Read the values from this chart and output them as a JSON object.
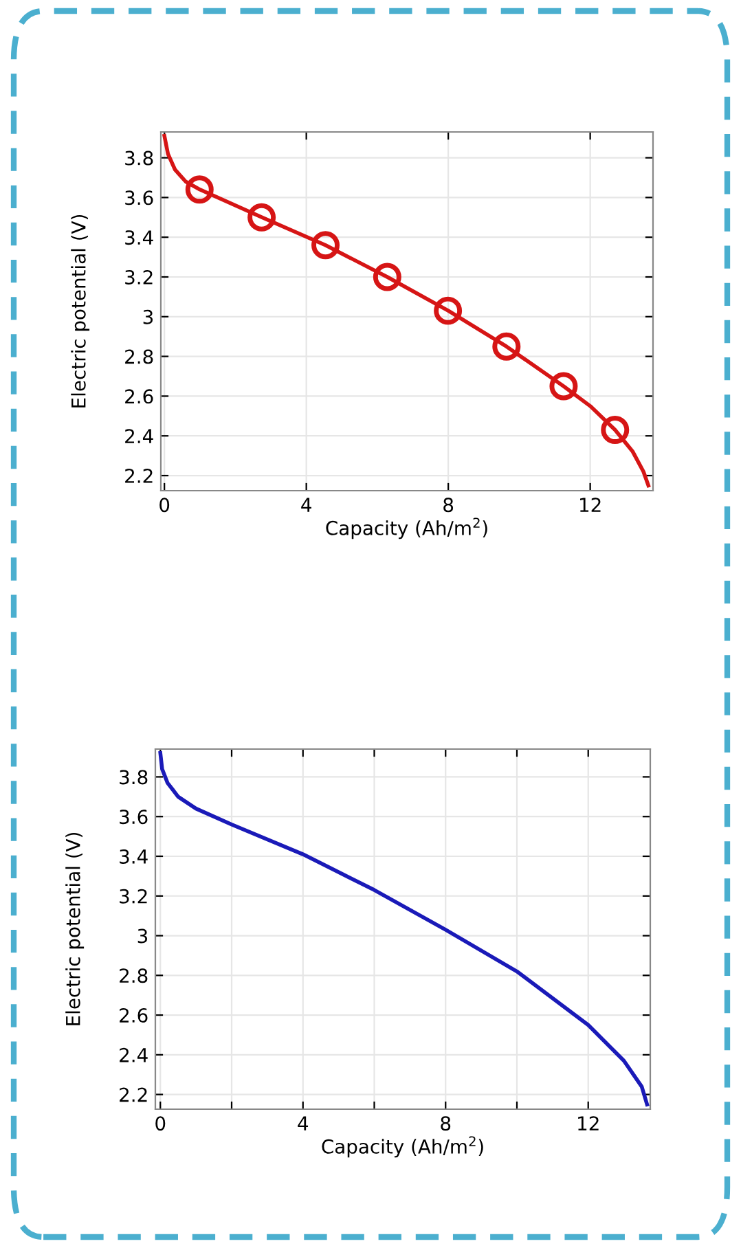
{
  "chart_data": [
    {
      "type": "line",
      "xlabel": "Capacity (Ah/m$^{2}$)",
      "ylabel": "Electric potential (V)",
      "xlim": [
        -0.1,
        13.77
      ],
      "ylim": [
        2.124,
        3.93
      ],
      "xticks": [
        0,
        4,
        8,
        12
      ],
      "yticks": [
        2.2,
        2.4,
        2.6,
        2.8,
        3,
        3.2,
        3.4,
        3.6,
        3.8
      ],
      "grid": true,
      "series": [
        {
          "color": "#d61515",
          "marker": "none",
          "x": [
            0,
            0.1,
            0.3,
            0.6,
            1.0,
            2.75,
            4.54,
            6.28,
            8,
            9.64,
            11.25,
            12.0,
            12.7,
            13.2,
            13.5,
            13.64
          ],
          "values": [
            3.91,
            3.82,
            3.74,
            3.68,
            3.64,
            3.5,
            3.36,
            3.2,
            3.03,
            2.85,
            2.65,
            2.55,
            2.43,
            2.32,
            2.22,
            2.15
          ]
        },
        {
          "type": "scatter",
          "color": "#d61515",
          "marker": "circle",
          "x": [
            0.99,
            2.74,
            4.54,
            6.28,
            7.99,
            9.64,
            11.25,
            12.7
          ],
          "values": [
            3.64,
            3.5,
            3.36,
            3.2,
            3.03,
            2.85,
            2.65,
            2.43
          ]
        }
      ]
    },
    {
      "type": "line",
      "xlabel": "Capacity (Ah/m$^{2}$)",
      "ylabel": "Electric potential (V)",
      "xlim": [
        -0.14,
        13.74
      ],
      "ylim": [
        2.126,
        3.94
      ],
      "xticks": [
        0,
        {
          "value": 2,
          "label": null
        },
        4,
        {
          "value": 6,
          "label": null
        },
        8,
        {
          "value": 10,
          "label": null
        },
        12
      ],
      "yticks": [
        2.2,
        2.4,
        2.6,
        2.8,
        3,
        3.2,
        3.4,
        3.6,
        3.8
      ],
      "grid": true,
      "series": [
        {
          "color": "#1a1ab8",
          "marker": "none",
          "x": [
            0,
            0.05,
            0.2,
            0.5,
            1.0,
            2,
            4,
            6,
            8,
            10,
            12,
            13,
            13.5,
            13.65
          ],
          "values": [
            3.92,
            3.84,
            3.77,
            3.7,
            3.64,
            3.56,
            3.41,
            3.23,
            3.03,
            2.82,
            2.55,
            2.37,
            2.24,
            2.15
          ]
        }
      ]
    }
  ]
}
